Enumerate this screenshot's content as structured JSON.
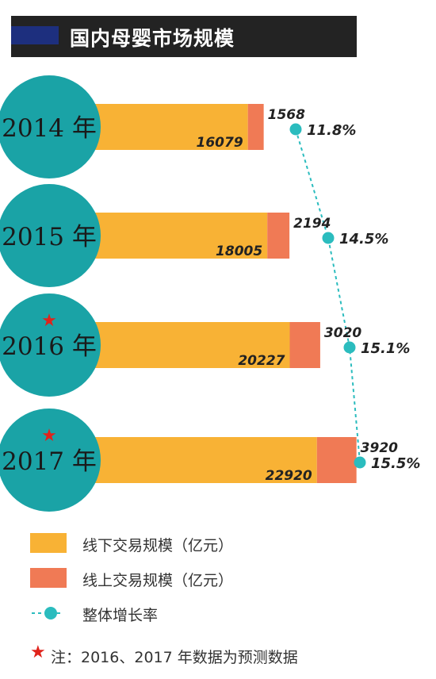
{
  "header": {
    "title": "国内母婴市场规模"
  },
  "colors": {
    "offline": "#f8b235",
    "online": "#f07a55",
    "circle": "#1aa3a6",
    "growth": "#2bbcbe",
    "star": "#e0231b",
    "header_bg": "#232323",
    "header_accent": "#1d2f7e"
  },
  "chart_data": {
    "type": "bar",
    "orientation": "horizontal",
    "stacked": true,
    "categories": [
      "2014 年",
      "2015 年",
      "2016 年",
      "2017 年"
    ],
    "forecast": [
      false,
      false,
      true,
      true
    ],
    "series": [
      {
        "name": "线下交易规模（亿元）",
        "values": [
          16079,
          18005,
          20227,
          22920
        ]
      },
      {
        "name": "线上交易规模（亿元）",
        "values": [
          1568,
          2194,
          3020,
          3920
        ]
      }
    ],
    "line_series": {
      "name": "整体增长率",
      "values": [
        11.8,
        14.5,
        15.1,
        15.5
      ],
      "labels": [
        "11.8%",
        "14.5%",
        "15.1%",
        "15.5%"
      ]
    },
    "online_labels": [
      "1568",
      "2194",
      "3020",
      "3920"
    ],
    "offline_labels": [
      "16079",
      "18005",
      "20227",
      "22920"
    ]
  },
  "legend": {
    "offline_label": "线下交易规模（亿元）",
    "online_label": "线上交易规模（亿元）",
    "growth_label": "整体增长率"
  },
  "note": {
    "star": "★",
    "text": "注：2016、2017 年数据为预测数据"
  }
}
